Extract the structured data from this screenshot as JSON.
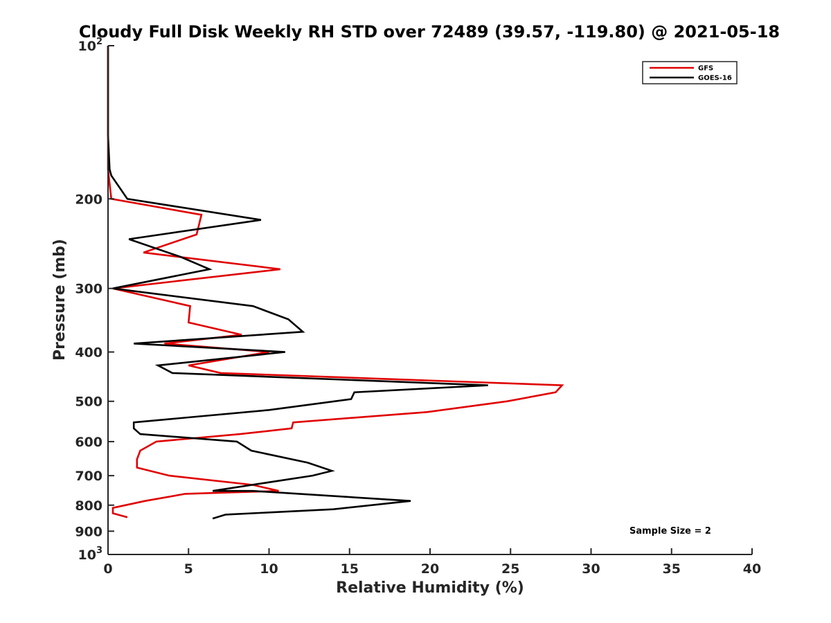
{
  "chart_data": {
    "type": "line",
    "title": "Cloudy Full Disk Weekly RH STD over 72489 (39.57, -119.80) @ 2021-05-18",
    "xlabel": "Relative Humidity (%)",
    "ylabel": "Pressure (mb)",
    "xlim": [
      0,
      40
    ],
    "ylim": [
      100,
      1000
    ],
    "y_scale": "log",
    "y_reversed": true,
    "grid": false,
    "legend_position": "top-right",
    "x_ticks": [
      0,
      5,
      10,
      15,
      20,
      25,
      30,
      35,
      40
    ],
    "y_ticks": [
      {
        "value": 100,
        "base": "10",
        "exp": "2"
      },
      {
        "value": 200,
        "label": "200"
      },
      {
        "value": 300,
        "label": "300"
      },
      {
        "value": 400,
        "label": "400"
      },
      {
        "value": 500,
        "label": "500"
      },
      {
        "value": 600,
        "label": "600"
      },
      {
        "value": 700,
        "label": "700"
      },
      {
        "value": 800,
        "label": "800"
      },
      {
        "value": 900,
        "label": "900"
      },
      {
        "value": 1000,
        "base": "10",
        "exp": "3"
      }
    ],
    "series": [
      {
        "name": "GFS",
        "color": "#e00000",
        "points": [
          [
            0.0,
            100
          ],
          [
            0.0,
            125
          ],
          [
            0.0,
            150
          ],
          [
            0.0,
            175
          ],
          [
            0.2,
            200
          ],
          [
            5.8,
            215
          ],
          [
            5.5,
            235
          ],
          [
            2.2,
            255
          ],
          [
            10.7,
            275
          ],
          [
            0.3,
            300
          ],
          [
            5.1,
            325
          ],
          [
            5.0,
            350
          ],
          [
            8.3,
            370
          ],
          [
            3.5,
            385
          ],
          [
            10.0,
            400
          ],
          [
            5.0,
            425
          ],
          [
            7.0,
            440
          ],
          [
            28.2,
            465
          ],
          [
            27.8,
            480
          ],
          [
            24.8,
            500
          ],
          [
            19.8,
            525
          ],
          [
            11.5,
            550
          ],
          [
            11.4,
            565
          ],
          [
            8.2,
            580
          ],
          [
            3.0,
            600
          ],
          [
            2.0,
            625
          ],
          [
            1.8,
            650
          ],
          [
            1.8,
            675
          ],
          [
            3.8,
            700
          ],
          [
            9.0,
            730
          ],
          [
            10.6,
            750
          ],
          [
            4.8,
            760
          ],
          [
            2.3,
            785
          ],
          [
            0.3,
            810
          ],
          [
            0.3,
            830
          ],
          [
            1.2,
            845
          ]
        ]
      },
      {
        "name": "GOES-16",
        "color": "#000000",
        "points": [
          [
            0.0,
            100
          ],
          [
            0.0,
            125
          ],
          [
            0.0,
            150
          ],
          [
            0.1,
            175
          ],
          [
            0.2,
            180
          ],
          [
            1.2,
            200
          ],
          [
            9.5,
            220
          ],
          [
            1.3,
            240
          ],
          [
            4.5,
            260
          ],
          [
            6.3,
            275
          ],
          [
            0.3,
            300
          ],
          [
            9.0,
            325
          ],
          [
            11.2,
            345
          ],
          [
            12.1,
            365
          ],
          [
            1.6,
            385
          ],
          [
            11.0,
            400
          ],
          [
            3.1,
            425
          ],
          [
            4.0,
            440
          ],
          [
            23.6,
            465
          ],
          [
            15.3,
            480
          ],
          [
            15.1,
            495
          ],
          [
            10.0,
            520
          ],
          [
            1.6,
            550
          ],
          [
            1.6,
            565
          ],
          [
            2.0,
            580
          ],
          [
            8.0,
            600
          ],
          [
            8.9,
            625
          ],
          [
            12.4,
            660
          ],
          [
            13.9,
            685
          ],
          [
            12.7,
            700
          ],
          [
            6.5,
            750
          ],
          [
            9.0,
            750
          ],
          [
            18.8,
            785
          ],
          [
            14.0,
            815
          ],
          [
            7.3,
            835
          ],
          [
            6.5,
            850
          ]
        ]
      }
    ],
    "annotations": [
      {
        "text": "Sample Size = 2"
      }
    ]
  }
}
